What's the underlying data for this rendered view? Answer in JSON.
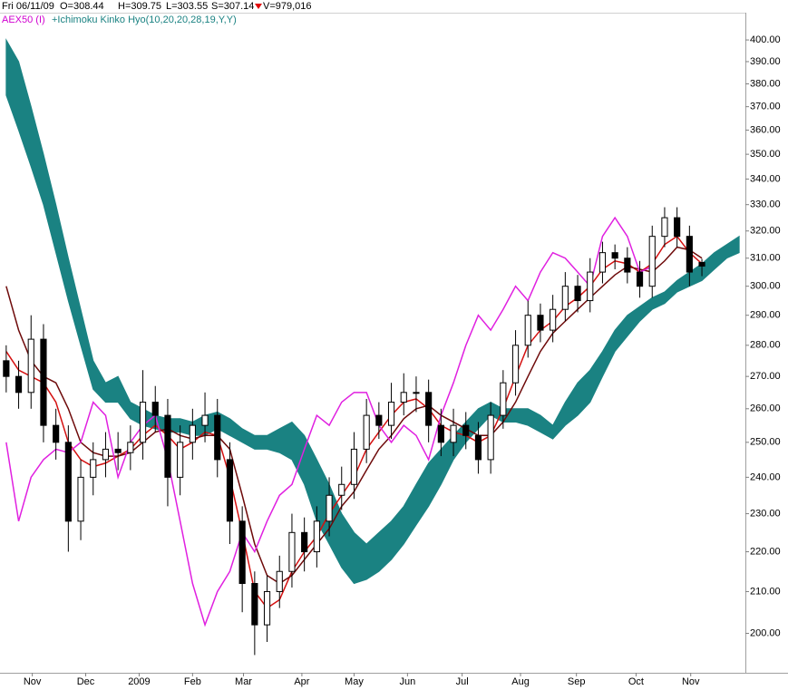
{
  "chart_data": {
    "type": "candlestick",
    "header": [
      "Fri 06/11/09",
      "O=308.44",
      "H=309.75",
      "L=303.55",
      "S=307.14",
      "V=979,016"
    ],
    "title": "AEX50 (I)",
    "indicator": "+Ichimoku Kinko Hyo(10,20,20,28,19,Y,Y)",
    "log_scale": true,
    "grid": false,
    "xlim": [
      -0.5,
      59.5
    ],
    "xticks": [
      {
        "value": 2.1,
        "label": "Nov"
      },
      {
        "value": 6.4,
        "label": "Dec"
      },
      {
        "value": 10.7,
        "label": "2009"
      },
      {
        "value": 15,
        "label": "Feb"
      },
      {
        "value": 19.1,
        "label": "Mar"
      },
      {
        "value": 23.8,
        "label": "Apr"
      },
      {
        "value": 28,
        "label": "May"
      },
      {
        "value": 32.3,
        "label": "Jun"
      },
      {
        "value": 36.7,
        "label": "Jul"
      },
      {
        "value": 41.4,
        "label": "Aug"
      },
      {
        "value": 45.9,
        "label": "Sep"
      },
      {
        "value": 50.7,
        "label": "Oct"
      },
      {
        "value": 55.1,
        "label": "Nov"
      }
    ],
    "ylim": [
      191,
      406
    ],
    "yticks": [
      {
        "value": 200,
        "label": "200.00"
      },
      {
        "value": 210,
        "label": "210.00"
      },
      {
        "value": 220,
        "label": "220.00"
      },
      {
        "value": 230,
        "label": "230.00"
      },
      {
        "value": 240,
        "label": "240.00"
      },
      {
        "value": 250,
        "label": "250.00"
      },
      {
        "value": 260,
        "label": "260.00"
      },
      {
        "value": 270,
        "label": "270.00"
      },
      {
        "value": 280,
        "label": "280.00"
      },
      {
        "value": 290,
        "label": "290.00"
      },
      {
        "value": 300,
        "label": "300.00"
      },
      {
        "value": 310,
        "label": "310.00"
      },
      {
        "value": 320,
        "label": "320.00"
      },
      {
        "value": 330,
        "label": "330.00"
      },
      {
        "value": 340,
        "label": "340.00"
      },
      {
        "value": 350,
        "label": "350.00"
      },
      {
        "value": 360,
        "label": "360.00"
      },
      {
        "value": 370,
        "label": "370.00"
      },
      {
        "value": 380,
        "label": "380.00"
      },
      {
        "value": 390,
        "label": "390.00"
      },
      {
        "value": 400,
        "label": "400.00"
      }
    ],
    "cloud": {
      "color": "#1a8282",
      "upper": [
        400,
        390,
        370,
        350,
        330,
        310,
        292,
        275,
        268,
        270,
        262,
        260,
        258,
        257,
        257,
        256,
        258,
        259,
        257,
        254,
        252,
        252,
        254,
        256,
        252,
        245,
        238,
        230,
        225,
        222,
        225,
        228,
        232,
        238,
        244,
        248,
        252,
        256,
        260,
        262,
        260,
        260,
        260,
        258,
        255,
        262,
        268,
        272,
        278,
        285,
        290,
        293,
        296,
        298,
        302,
        305,
        308,
        312,
        315,
        318
      ],
      "lower": [
        375,
        360,
        345,
        330,
        312,
        295,
        280,
        266,
        262,
        262,
        257,
        255,
        254,
        253,
        253,
        252,
        252,
        254,
        252,
        250,
        248,
        248,
        247,
        245,
        238,
        228,
        222,
        216,
        212,
        213,
        215,
        218,
        222,
        227,
        232,
        238,
        245,
        250,
        254,
        258,
        256,
        256,
        255,
        253,
        251,
        255,
        258,
        262,
        270,
        278,
        283,
        288,
        292,
        294,
        298,
        300,
        302,
        306,
        310,
        312
      ]
    },
    "candles": {
      "color": "#000000",
      "open": [
        275,
        270,
        265,
        282,
        255,
        250,
        228,
        240,
        245,
        248,
        247,
        250,
        262,
        258,
        240,
        250,
        255,
        258,
        245,
        228,
        212,
        202,
        210,
        215,
        225,
        220,
        228,
        235,
        238,
        248,
        258,
        255,
        262,
        265,
        265,
        255,
        250,
        255,
        252,
        245,
        258,
        268,
        280,
        290,
        285,
        292,
        300,
        295,
        305,
        312,
        310,
        305,
        300,
        318,
        325,
        318,
        308.44
      ],
      "high": [
        280,
        275,
        290,
        287,
        260,
        255,
        245,
        250,
        253,
        253,
        255,
        272,
        267,
        263,
        255,
        260,
        265,
        263,
        250,
        232,
        215,
        214,
        219,
        230,
        229,
        232,
        240,
        243,
        253,
        263,
        262,
        268,
        271,
        270,
        269,
        260,
        260,
        259,
        256,
        262,
        272,
        285,
        295,
        294,
        297,
        305,
        304,
        310,
        316,
        315,
        314,
        309,
        322,
        329,
        329,
        322,
        309.75
      ],
      "low": [
        265,
        260,
        260,
        250,
        245,
        220,
        223,
        235,
        240,
        242,
        242,
        245,
        253,
        232,
        235,
        245,
        250,
        240,
        222,
        205,
        195,
        198,
        206,
        211,
        215,
        216,
        224,
        231,
        234,
        244,
        251,
        251,
        258,
        259,
        250,
        246,
        246,
        248,
        241,
        241,
        254,
        264,
        276,
        281,
        281,
        288,
        291,
        291,
        301,
        306,
        301,
        296,
        296,
        314,
        314,
        300,
        303.55
      ],
      "close": [
        270,
        265,
        282,
        255,
        250,
        228,
        240,
        245,
        248,
        247,
        250,
        262,
        258,
        240,
        250,
        255,
        258,
        245,
        228,
        212,
        202,
        210,
        215,
        225,
        220,
        228,
        235,
        238,
        248,
        258,
        255,
        262,
        265,
        265,
        255,
        250,
        255,
        252,
        245,
        258,
        268,
        280,
        290,
        285,
        292,
        300,
        295,
        305,
        312,
        310,
        305,
        300,
        318,
        325,
        318,
        305,
        307.14
      ]
    },
    "series": [
      {
        "color": "#d41010",
        "values": [
          278,
          272,
          270,
          268,
          262,
          250,
          245,
          243,
          244,
          246,
          248,
          252,
          255,
          252,
          248,
          250,
          253,
          252,
          240,
          225,
          210,
          206,
          208,
          215,
          220,
          224,
          230,
          235,
          240,
          248,
          253,
          258,
          262,
          263,
          260,
          255,
          253,
          252,
          250,
          252,
          260,
          270,
          280,
          285,
          288,
          293,
          296,
          300,
          306,
          309,
          308,
          305,
          308,
          315,
          318,
          312,
          308
        ]
      },
      {
        "color": "#6e0a0a",
        "values": [
          300,
          285,
          275,
          270,
          268,
          260,
          250,
          247,
          246,
          246,
          247,
          250,
          253,
          254,
          252,
          251,
          252,
          252,
          248,
          235,
          222,
          214,
          212,
          214,
          218,
          222,
          226,
          232,
          236,
          242,
          248,
          252,
          257,
          260,
          261,
          258,
          256,
          254,
          252,
          252,
          256,
          262,
          270,
          278,
          284,
          288,
          292,
          296,
          300,
          304,
          307,
          306,
          305,
          309,
          314,
          313,
          310
        ]
      },
      {
        "color": "#e020e0",
        "values": [
          250,
          228,
          240,
          245,
          248,
          247,
          250,
          262,
          258,
          240,
          250,
          255,
          258,
          245,
          228,
          212,
          202,
          210,
          215,
          225,
          220,
          228,
          235,
          238,
          248,
          258,
          255,
          262,
          265,
          265,
          255,
          250,
          255,
          252,
          245,
          258,
          268,
          280,
          290,
          285,
          292,
          300,
          295,
          305,
          312,
          310,
          305,
          300,
          318,
          325,
          318,
          305,
          307
        ]
      }
    ]
  }
}
